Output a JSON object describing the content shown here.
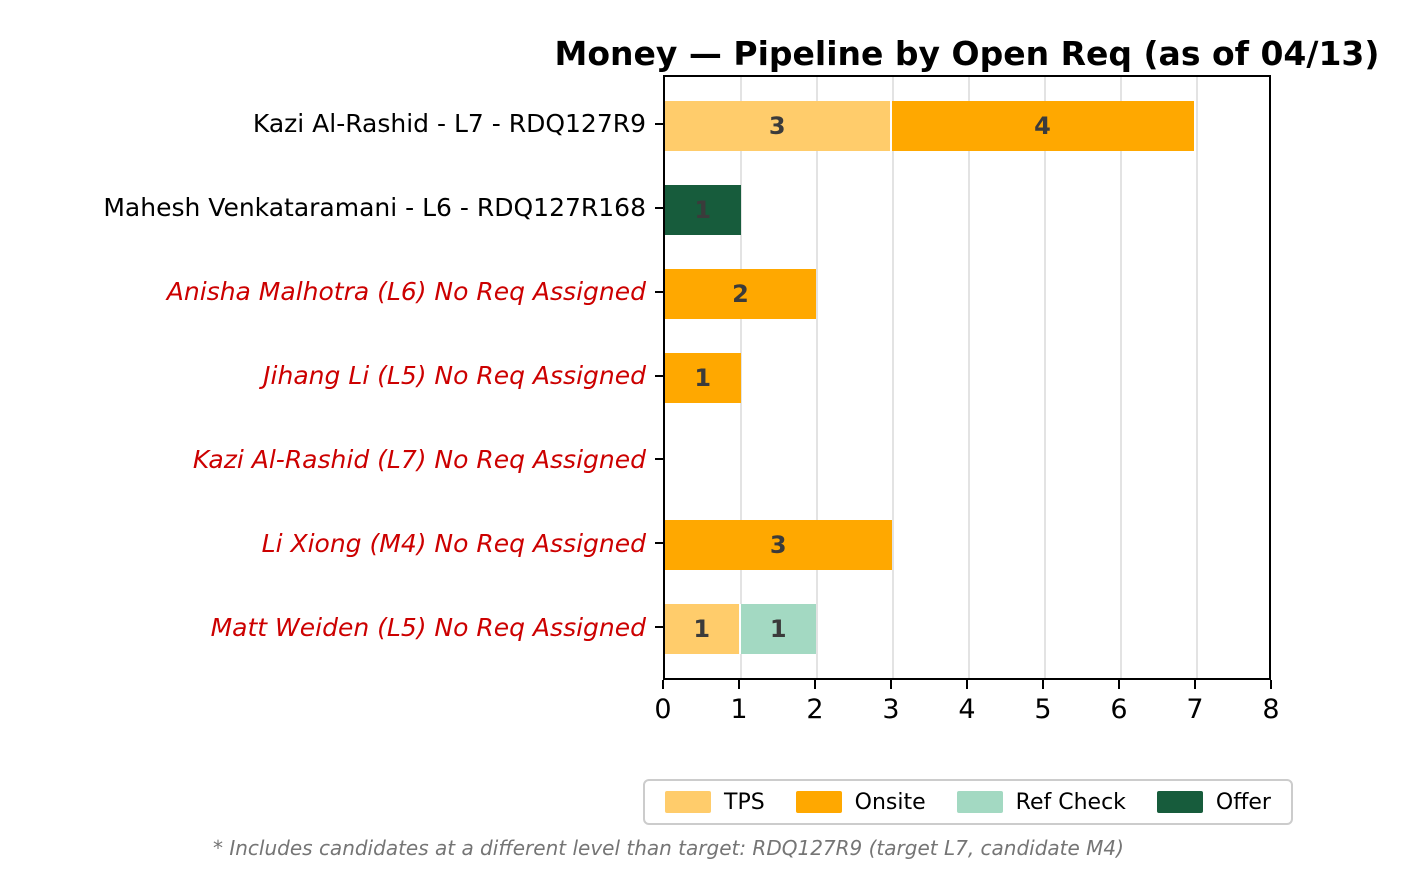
{
  "title": "Money — Pipeline by Open Req (as of 04/13)",
  "footnote": "* Includes candidates at a different level than target: RDQ127R9 (target L7, candidate M4)",
  "colors": {
    "tps": "#FFCC6B",
    "onsite": "#FFA800",
    "ref_check": "#A3D9C2",
    "offer": "#175C3C",
    "no_req_label": "#CC0000",
    "assigned_label": "#000000",
    "bar_value_text": "#3B3B3B",
    "gridline": "#E3E3E3",
    "footnote_text": "#757575",
    "legend_border": "#CCCCCC"
  },
  "chart_data": {
    "type": "bar",
    "orientation": "horizontal",
    "stacked": true,
    "title": "Money — Pipeline by Open Req (as of 04/13)",
    "xlabel": "",
    "ylabel": "",
    "xlim": [
      0,
      8
    ],
    "xticks": [
      "0",
      "1",
      "2",
      "3",
      "4",
      "5",
      "6",
      "7",
      "8"
    ],
    "grid": "vertical",
    "legend_position": "bottom",
    "categories": [
      "Kazi Al-Rashid - L7 - RDQ127R9",
      "Mahesh Venkataramani - L6 - RDQ127R168",
      "Anisha Malhotra (L6) No Req Assigned",
      "Jihang Li (L5) No Req Assigned",
      "Kazi Al-Rashid (L7) No Req Assigned",
      "Li Xiong (M4) No Req Assigned",
      "Matt Weiden (L5) No Req Assigned"
    ],
    "category_flags": [
      "assigned",
      "assigned",
      "no_req",
      "no_req",
      "no_req",
      "no_req",
      "no_req"
    ],
    "series": [
      {
        "name": "TPS",
        "color": "#FFCC6B",
        "values": [
          3,
          0,
          0,
          0,
          0,
          0,
          1
        ]
      },
      {
        "name": "Onsite",
        "color": "#FFA800",
        "values": [
          4,
          0,
          2,
          1,
          0,
          3,
          0
        ]
      },
      {
        "name": "Ref Check",
        "color": "#A3D9C2",
        "values": [
          0,
          0,
          0,
          0,
          0,
          0,
          1
        ]
      },
      {
        "name": "Offer",
        "color": "#175C3C",
        "values": [
          0,
          1,
          0,
          0,
          0,
          0,
          0
        ]
      }
    ]
  }
}
